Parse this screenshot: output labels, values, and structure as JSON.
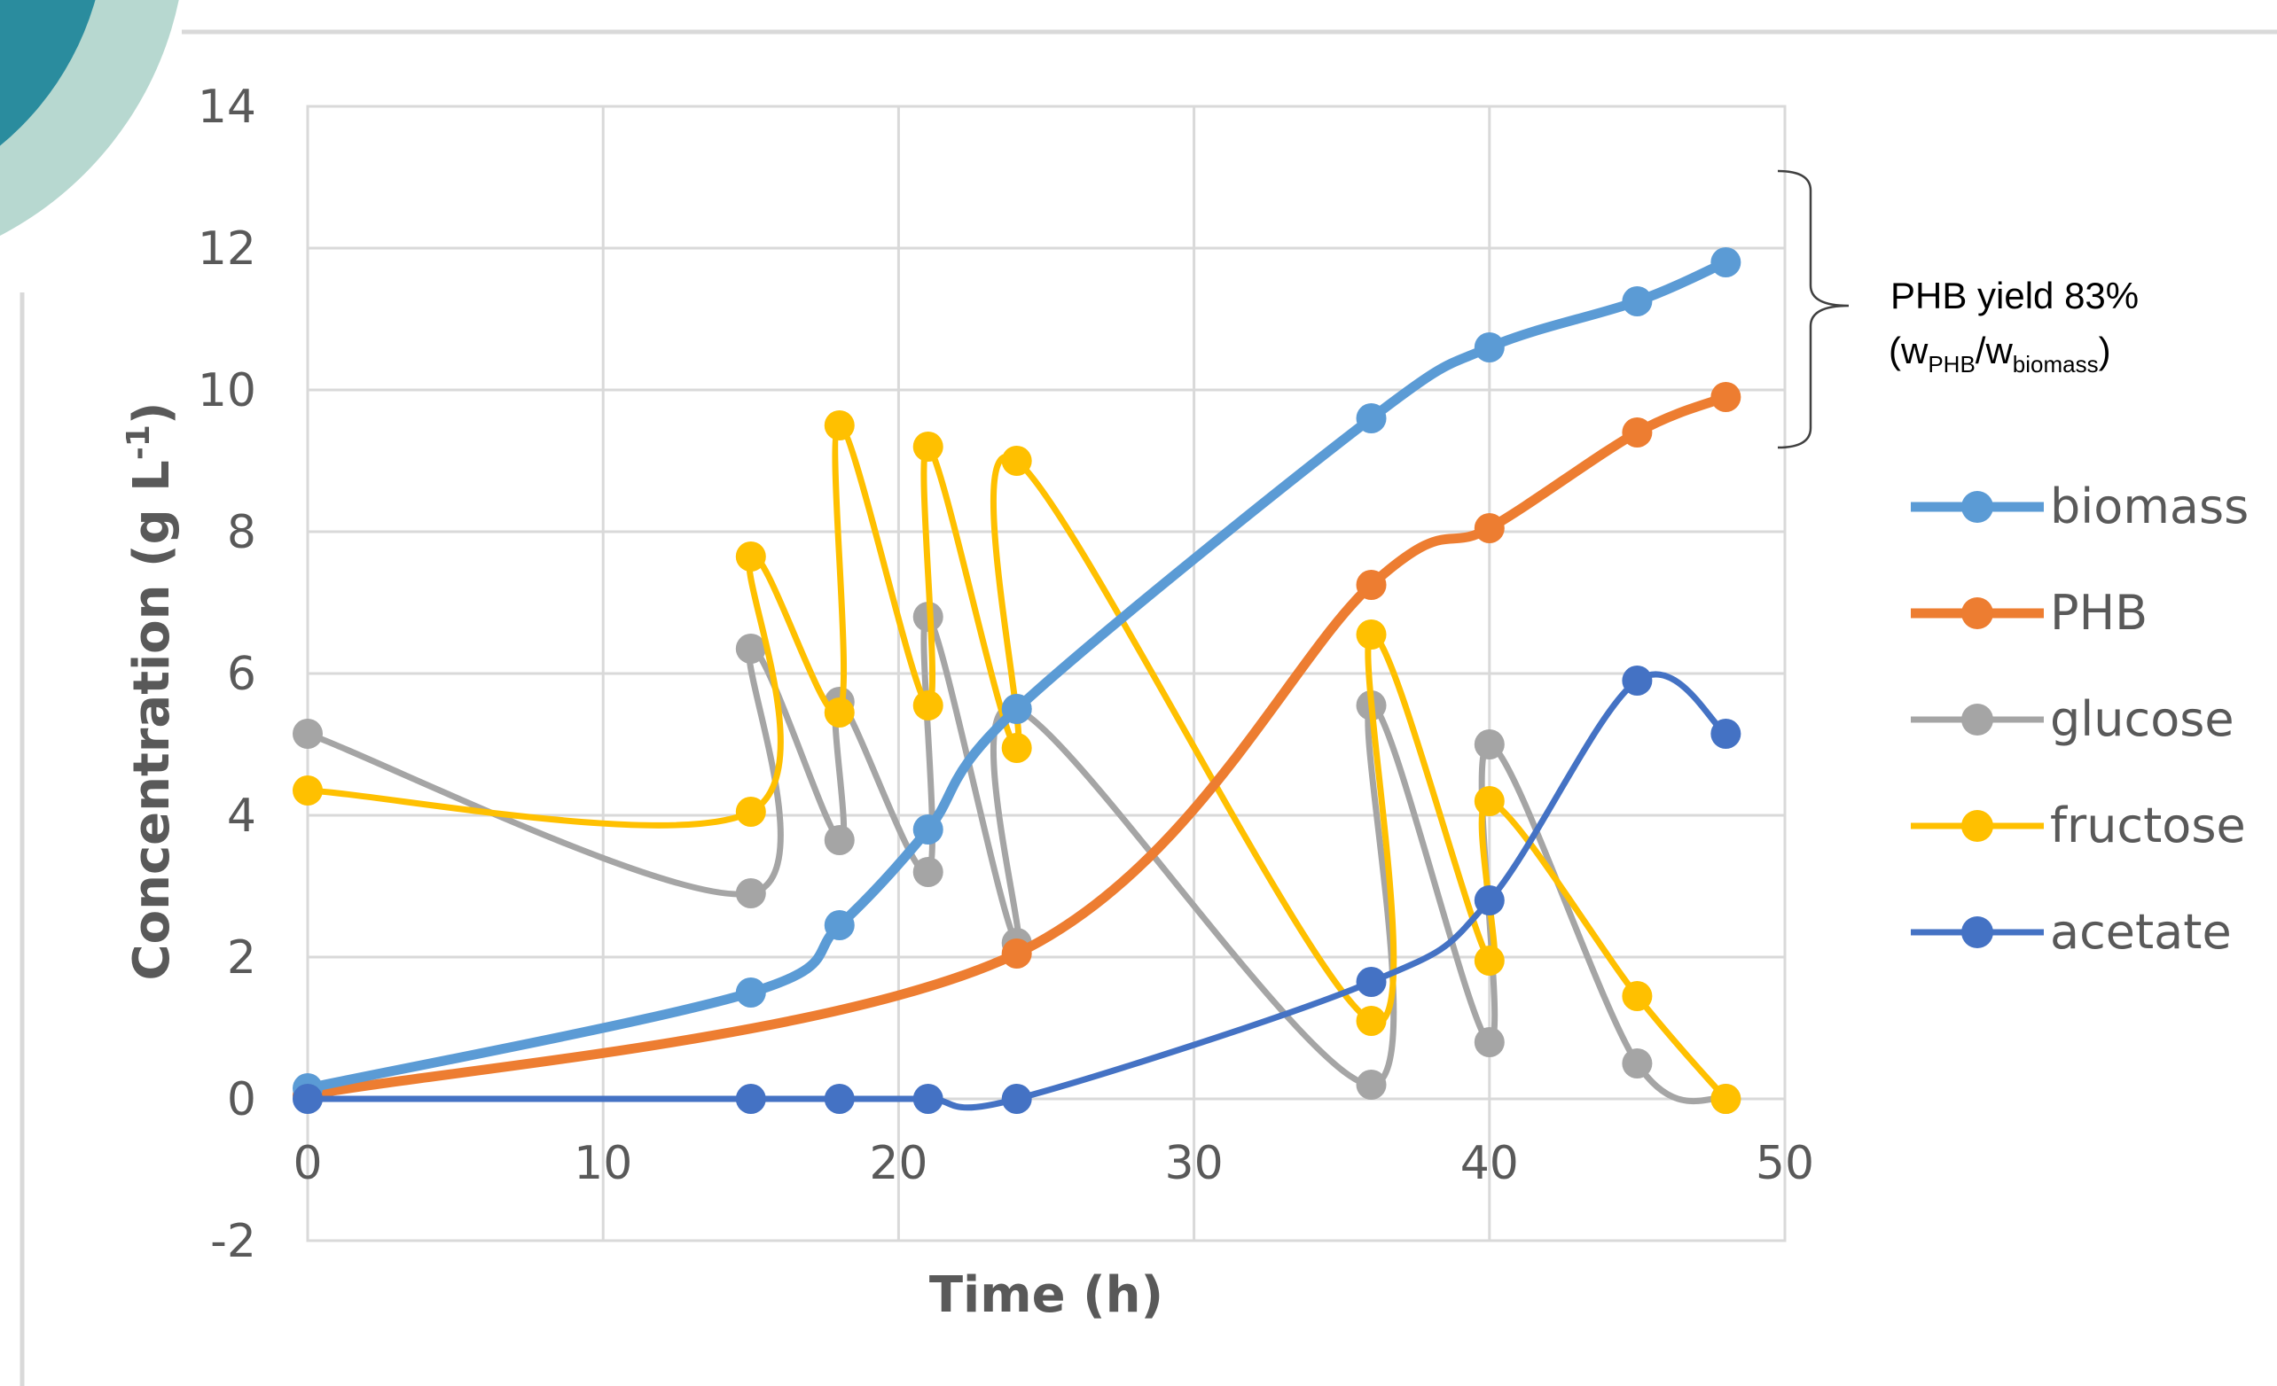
{
  "chart_data": {
    "type": "line",
    "smooth": true,
    "xlabel": "Time (h)",
    "ylabel_text": "Concentration (g L",
    "ylabel_sup": "-1",
    "ylabel_close": ")",
    "xlim": [
      0,
      50
    ],
    "ylim": [
      -2,
      14
    ],
    "xticks": [
      0,
      10,
      20,
      30,
      40,
      50
    ],
    "yticks": [
      -2,
      0,
      2,
      4,
      6,
      8,
      10,
      12,
      14
    ],
    "grid": true,
    "legend_position": "right",
    "series": [
      {
        "name": "biomass",
        "color": "#5B9BD5",
        "x": [
          0,
          15,
          18,
          21,
          24,
          36,
          40,
          45,
          48
        ],
        "y": [
          0.15,
          1.5,
          2.45,
          3.8,
          5.5,
          9.6,
          10.6,
          11.25,
          11.8
        ]
      },
      {
        "name": "PHB",
        "color": "#ED7D31",
        "x": [
          0,
          24,
          36,
          40,
          45,
          48
        ],
        "y": [
          0.05,
          2.05,
          7.25,
          8.05,
          9.4,
          9.9
        ]
      },
      {
        "name": "glucose",
        "color": "#A5A5A5",
        "x": [
          0,
          15,
          15,
          18,
          18,
          21,
          21,
          24,
          24,
          36,
          36,
          40,
          40,
          45,
          48
        ],
        "y": [
          5.15,
          2.9,
          6.35,
          3.65,
          5.6,
          3.2,
          6.8,
          2.2,
          5.5,
          0.2,
          5.55,
          0.8,
          5.0,
          0.5,
          0.0
        ]
      },
      {
        "name": "fructose",
        "color": "#FFC000",
        "x": [
          0,
          15,
          15,
          18,
          18,
          21,
          21,
          24,
          24,
          36,
          36,
          40,
          40,
          45,
          48
        ],
        "y": [
          4.35,
          4.05,
          7.65,
          5.45,
          9.5,
          5.55,
          9.2,
          4.95,
          9.0,
          1.1,
          6.55,
          1.95,
          4.2,
          1.45,
          0.0
        ]
      },
      {
        "name": "acetate",
        "color": "#4472C4",
        "x": [
          0,
          15,
          18,
          21,
          24,
          36,
          40,
          45,
          48
        ],
        "y": [
          0.0,
          0.0,
          0.0,
          0.0,
          0.0,
          1.65,
          2.8,
          5.9,
          5.15
        ]
      }
    ],
    "annotation": {
      "line1": "PHB yield 83%",
      "open": "(w",
      "sub1": "PHB",
      "slash": "/w",
      "sub2": "biomass",
      "close": ")"
    }
  },
  "decor": {
    "circle_outer_color": "#B7D8D0",
    "circle_inner_color": "#2A8C9E"
  }
}
